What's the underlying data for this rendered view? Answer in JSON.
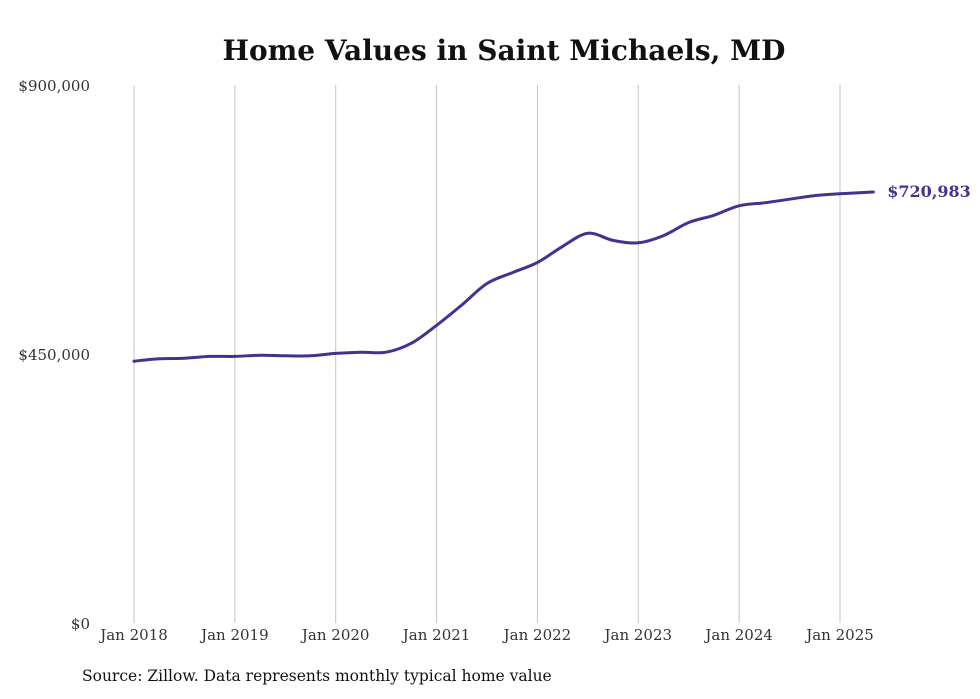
{
  "chart_data": {
    "type": "line",
    "title": "Home Values in Saint Michaels, MD",
    "xlabel": "",
    "ylabel": "",
    "ylim": [
      0,
      900000
    ],
    "y_ticks": [
      {
        "value": 0,
        "label": "$0"
      },
      {
        "value": 450000,
        "label": "$450,000"
      },
      {
        "value": 900000,
        "label": "$900,000"
      }
    ],
    "x_ticks": [
      {
        "value": 2018.0,
        "label": "Jan 2018"
      },
      {
        "value": 2019.0,
        "label": "Jan 2019"
      },
      {
        "value": 2020.0,
        "label": "Jan 2020"
      },
      {
        "value": 2021.0,
        "label": "Jan 2021"
      },
      {
        "value": 2022.0,
        "label": "Jan 2022"
      },
      {
        "value": 2023.0,
        "label": "Jan 2023"
      },
      {
        "value": 2024.0,
        "label": "Jan 2024"
      },
      {
        "value": 2025.0,
        "label": "Jan 2025"
      }
    ],
    "grid": "vertical",
    "series": [
      {
        "color": "#3d3590",
        "end_label": "$720,983",
        "points": [
          {
            "x": 2018.0,
            "y": 438000
          },
          {
            "x": 2018.25,
            "y": 442000
          },
          {
            "x": 2018.5,
            "y": 443000
          },
          {
            "x": 2018.75,
            "y": 446000
          },
          {
            "x": 2019.0,
            "y": 446000
          },
          {
            "x": 2019.25,
            "y": 448000
          },
          {
            "x": 2019.5,
            "y": 447000
          },
          {
            "x": 2019.75,
            "y": 447000
          },
          {
            "x": 2020.0,
            "y": 451000
          },
          {
            "x": 2020.25,
            "y": 453000
          },
          {
            "x": 2020.5,
            "y": 453000
          },
          {
            "x": 2020.75,
            "y": 468000
          },
          {
            "x": 2021.0,
            "y": 498000
          },
          {
            "x": 2021.25,
            "y": 532000
          },
          {
            "x": 2021.5,
            "y": 568000
          },
          {
            "x": 2021.75,
            "y": 586000
          },
          {
            "x": 2022.0,
            "y": 603000
          },
          {
            "x": 2022.25,
            "y": 630000
          },
          {
            "x": 2022.5,
            "y": 652000
          },
          {
            "x": 2022.75,
            "y": 640000
          },
          {
            "x": 2023.0,
            "y": 636000
          },
          {
            "x": 2023.25,
            "y": 648000
          },
          {
            "x": 2023.5,
            "y": 670000
          },
          {
            "x": 2023.75,
            "y": 682000
          },
          {
            "x": 2024.0,
            "y": 698000
          },
          {
            "x": 2024.25,
            "y": 703000
          },
          {
            "x": 2024.5,
            "y": 709000
          },
          {
            "x": 2024.75,
            "y": 715000
          },
          {
            "x": 2025.0,
            "y": 718000
          },
          {
            "x": 2025.33,
            "y": 720983
          }
        ]
      }
    ]
  },
  "source": "Source: Zillow. Data represents monthly typical home value"
}
